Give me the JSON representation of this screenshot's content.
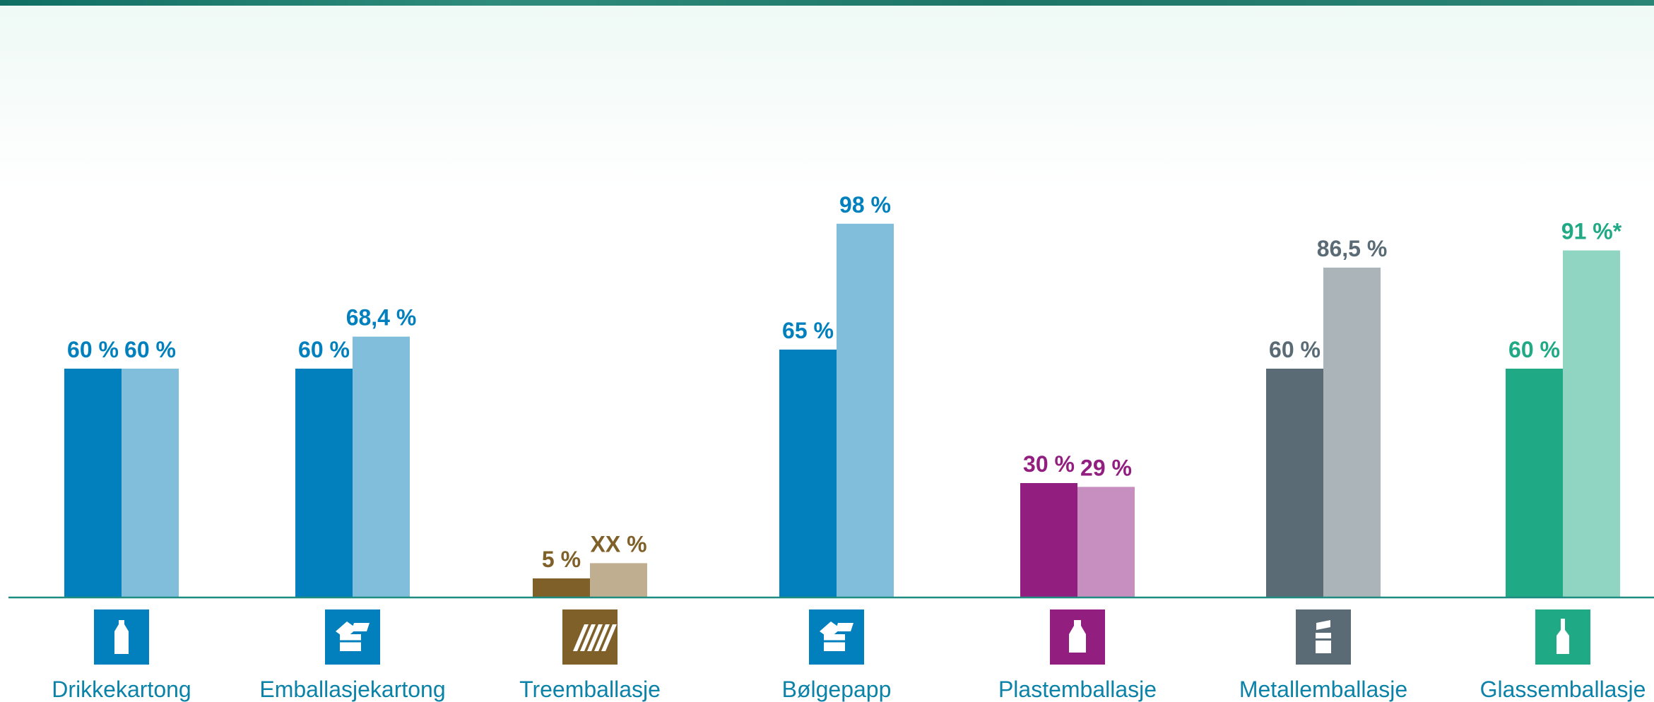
{
  "chart_data": {
    "type": "bar",
    "title": "",
    "xlabel": "",
    "ylabel": "",
    "ylim": [
      0,
      100
    ],
    "grid": false,
    "legend": "none",
    "categories": [
      "Drikkekartong",
      "Emballasjekartong",
      "Treemballasje",
      "Bølgepapp",
      "Plastemballasje",
      "Metallemballasje",
      "Glassemballasje"
    ],
    "series": [
      {
        "values": [
          60,
          60,
          5,
          65,
          30,
          60,
          60
        ],
        "labels": [
          "60 %",
          "60 %",
          "5 %",
          "65 %",
          "30 %",
          "60 %",
          "60 %"
        ]
      },
      {
        "values": [
          60,
          68.4,
          9,
          98,
          29,
          86.5,
          91
        ],
        "labels": [
          "60 %",
          "68,4 %",
          "XX %",
          "98 %",
          "29 %",
          "86,5 %",
          "91 %*"
        ]
      }
    ],
    "colors": {
      "dark": [
        "#0180bd",
        "#0180bd",
        "#7f6028",
        "#0180bd",
        "#921e80",
        "#5a6b75",
        "#1fa984"
      ],
      "light": [
        "#80bedc",
        "#80bedc",
        "#c0ae91",
        "#80bedc",
        "#c78ec0",
        "#abb4b9",
        "#8fd5c2"
      ],
      "label": [
        "#0180bd",
        "#0180bd",
        "#7f6028",
        "#0180bd",
        "#921e80",
        "#5a6b75",
        "#1fa984"
      ],
      "icon_bg": [
        "#0180bd",
        "#0180bd",
        "#7f6028",
        "#0180bd",
        "#921e80",
        "#5a6b75",
        "#1fa984"
      ],
      "axis": "#1e8c80",
      "category_text": "#0b82a8"
    },
    "icons": [
      "drink-carton-icon",
      "open-box-icon",
      "wood-planks-icon",
      "open-box-icon",
      "plastic-bottle-icon",
      "metal-can-icon",
      "glass-bottle-icon"
    ]
  }
}
